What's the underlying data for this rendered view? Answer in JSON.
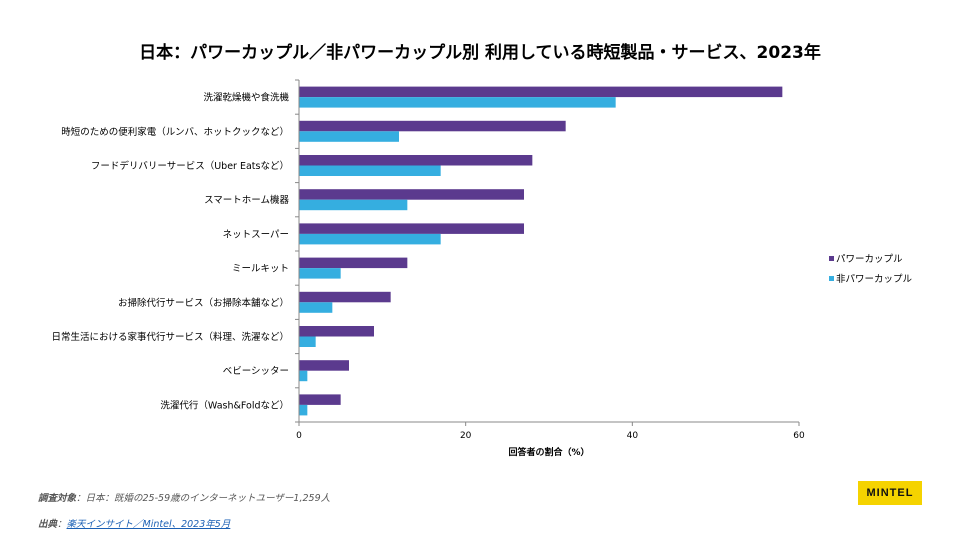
{
  "chart_data": {
    "type": "bar",
    "orientation": "horizontal",
    "title": "日本：パワーカップル／非パワーカップル別 利用している時短製品・サービス、2023年",
    "xlabel": "回答者の割合（%）",
    "ylabel": "",
    "xlim": [
      0,
      60
    ],
    "xticks": [
      0,
      20,
      40,
      60
    ],
    "xtick_labels": [
      "0",
      "20",
      "40",
      "60"
    ],
    "grid": false,
    "legend_position": "right",
    "categories": [
      "洗濯乾燥機や食洗機",
      "時短のための便利家電（ルンバ、ホットクックなど）",
      "フードデリバリーサービス（Uber Eatsなど）",
      "スマートホーム機器",
      "ネットスーパー",
      "ミールキット",
      "お掃除代行サービス（お掃除本舗など）",
      "日常生活における家事代行サービス（料理、洗濯など）",
      "ベビーシッター",
      "洗濯代行（Wash&Foldなど）"
    ],
    "series": [
      {
        "name": "パワーカップル",
        "color": "#5b3a8e",
        "values": [
          58,
          32,
          28,
          27,
          27,
          13,
          11,
          9,
          6,
          5
        ]
      },
      {
        "name": "非パワーカップル",
        "color": "#35aee0",
        "values": [
          38,
          12,
          17,
          13,
          17,
          5,
          4,
          2,
          1,
          1
        ]
      }
    ]
  },
  "footer": {
    "survey_key": "調査対象",
    "survey_text": "：日本：既婚の25-59歳のインターネットユーザー1,259人",
    "source_key": "出典",
    "source_text": "楽天インサイト／Mintel、2023年5月"
  },
  "logo": {
    "text": "MINTEL",
    "color": "#f5d300"
  }
}
